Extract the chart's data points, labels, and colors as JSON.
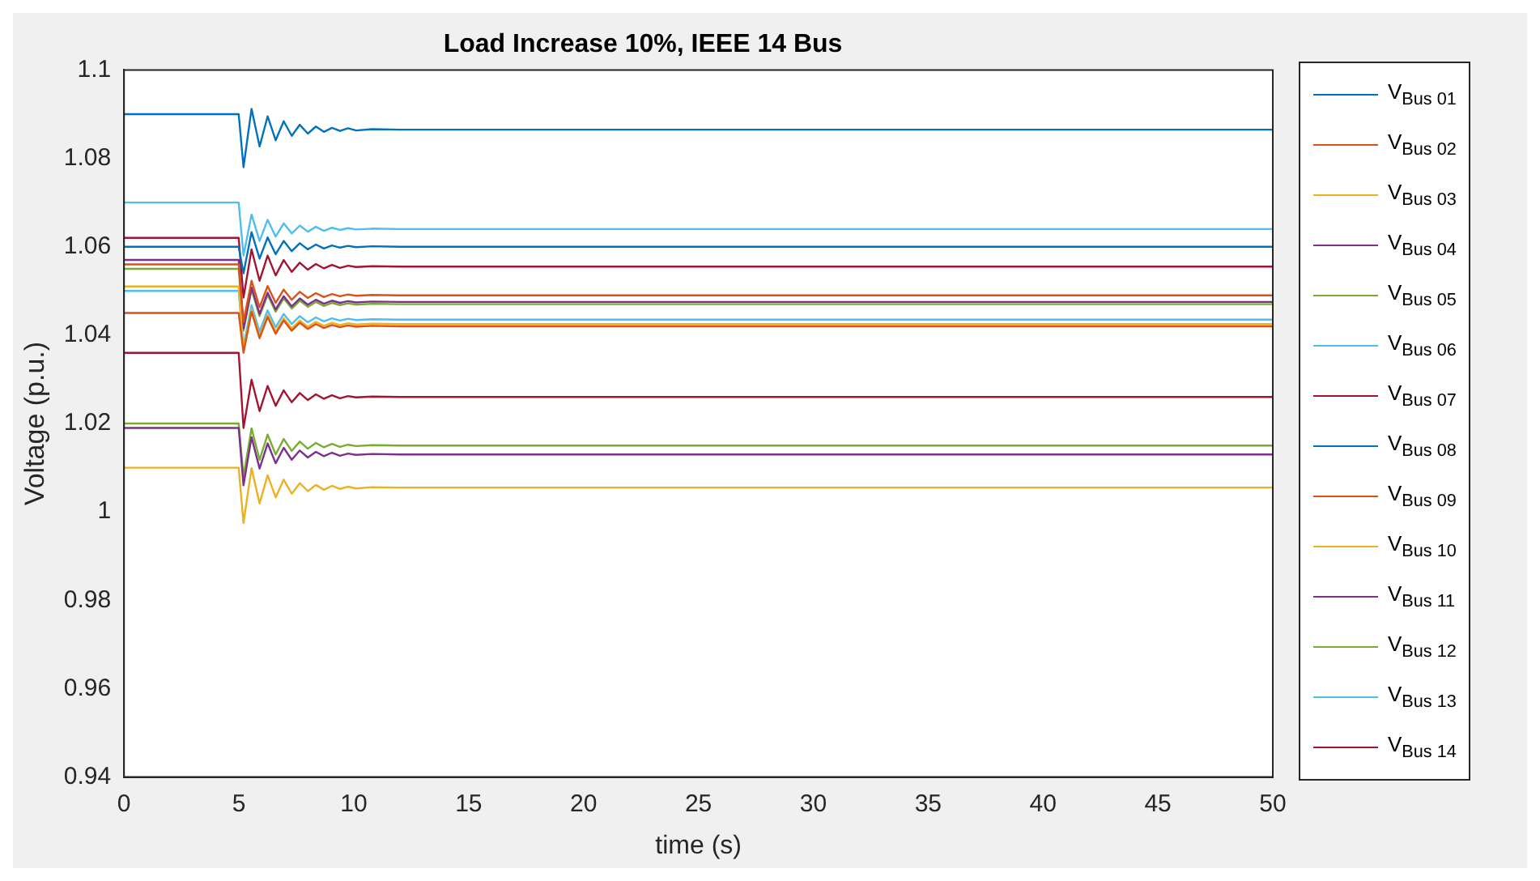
{
  "chart_data": {
    "type": "line",
    "title": "Load Increase 10%, IEEE 14 Bus",
    "xlabel": "time (s)",
    "ylabel": "Voltage (p.u.)",
    "xlim": [
      0,
      50
    ],
    "xticks": [
      0,
      5,
      10,
      15,
      20,
      25,
      30,
      35,
      40,
      45,
      50
    ],
    "ylim": [
      0.94,
      1.1
    ],
    "yticks": [
      0.94,
      0.96,
      0.98,
      1,
      1.02,
      1.04,
      1.06,
      1.08,
      1.1
    ],
    "legend": "right",
    "x": [
      0,
      4.99,
      5.2,
      5.55,
      5.9,
      6.25,
      6.6,
      6.95,
      7.3,
      7.65,
      8,
      8.35,
      8.7,
      9.05,
      9.4,
      9.75,
      10.1,
      10.8,
      12,
      50
    ],
    "series": [
      {
        "name": "V$_{Bus 01}$",
        "color": "#0072bd",
        "values": [
          1.06,
          1.06,
          1.054,
          1.0633,
          1.0573,
          1.0621,
          1.0583,
          1.0613,
          1.059,
          1.0608,
          1.0594,
          1.0605,
          1.0596,
          1.0603,
          1.0598,
          1.0602,
          1.0599,
          1.0601,
          1.06,
          1.06
        ]
      },
      {
        "name": "V$_{Bus 02}$",
        "color": "#d95319",
        "values": [
          1.045,
          1.045,
          1.036,
          1.0453,
          1.0393,
          1.0441,
          1.0403,
          1.0433,
          1.041,
          1.0428,
          1.0414,
          1.0425,
          1.0416,
          1.0423,
          1.0418,
          1.0422,
          1.0419,
          1.0421,
          1.042,
          1.042
        ]
      },
      {
        "name": "V$_{Bus 03}$",
        "color": "#edb120",
        "values": [
          1.01,
          1.01,
          0.9975,
          1.0099,
          1.0019,
          1.0083,
          1.0033,
          1.0073,
          1.0041,
          1.0065,
          1.0047,
          1.0061,
          1.005,
          1.0059,
          1.0052,
          1.0057,
          1.0053,
          1.0056,
          1.0055,
          1.0055
        ]
      },
      {
        "name": "V$_{Bus 04}$",
        "color": "#7e2f8e",
        "values": [
          1.019,
          1.019,
          1.006,
          1.0169,
          1.0098,
          1.0155,
          1.011,
          1.0145,
          1.0118,
          1.0139,
          1.0123,
          1.0136,
          1.0126,
          1.0134,
          1.0127,
          1.0132,
          1.0129,
          1.0131,
          1.013,
          1.013
        ]
      },
      {
        "name": "V$_{Bus 05}$",
        "color": "#77ac30",
        "values": [
          1.02,
          1.02,
          1.008,
          1.0189,
          1.0118,
          1.0175,
          1.013,
          1.0165,
          1.0138,
          1.0159,
          1.0143,
          1.0156,
          1.0146,
          1.0154,
          1.0147,
          1.0152,
          1.0149,
          1.0151,
          1.015,
          1.015
        ]
      },
      {
        "name": "V$_{Bus 06}$",
        "color": "#4dbeee",
        "values": [
          1.07,
          1.07,
          1.058,
          1.0673,
          1.0613,
          1.0661,
          1.0623,
          1.0653,
          1.063,
          1.0648,
          1.0634,
          1.0645,
          1.0636,
          1.0643,
          1.0638,
          1.0642,
          1.0639,
          1.0641,
          1.064,
          1.064
        ]
      },
      {
        "name": "V$_{Bus 07}$",
        "color": "#a2142f",
        "values": [
          1.062,
          1.062,
          1.0485,
          1.0594,
          1.0523,
          1.058,
          1.0535,
          1.057,
          1.0543,
          1.0564,
          1.0548,
          1.0561,
          1.0551,
          1.0559,
          1.0552,
          1.0557,
          1.0554,
          1.0556,
          1.0555,
          1.0555
        ]
      },
      {
        "name": "V$_{Bus 08}$",
        "color": "#0072bd",
        "values": [
          1.09,
          1.09,
          1.078,
          1.0912,
          1.0827,
          1.0895,
          1.0841,
          1.0884,
          1.0851,
          1.0876,
          1.0856,
          1.0872,
          1.086,
          1.0869,
          1.0862,
          1.0868,
          1.0863,
          1.0866,
          1.0865,
          1.0865
        ]
      },
      {
        "name": "V$_{Bus 09}$",
        "color": "#d95319",
        "values": [
          1.056,
          1.056,
          1.043,
          1.0523,
          1.0463,
          1.0511,
          1.0473,
          1.0503,
          1.048,
          1.0498,
          1.0484,
          1.0495,
          1.0486,
          1.0493,
          1.0488,
          1.0492,
          1.0489,
          1.0491,
          1.049,
          1.049
        ]
      },
      {
        "name": "V$_{Bus 10}$",
        "color": "#edb120",
        "values": [
          1.051,
          1.051,
          1.0365,
          1.0458,
          1.0398,
          1.0446,
          1.0408,
          1.0438,
          1.0415,
          1.0433,
          1.0419,
          1.043,
          1.0421,
          1.0428,
          1.0423,
          1.0427,
          1.0424,
          1.0426,
          1.0425,
          1.0425
        ]
      },
      {
        "name": "V$_{Bus 11}$",
        "color": "#7e2f8e",
        "values": [
          1.057,
          1.057,
          1.0415,
          1.0508,
          1.0448,
          1.0496,
          1.0458,
          1.0488,
          1.0465,
          1.0483,
          1.0469,
          1.048,
          1.0471,
          1.0478,
          1.0473,
          1.0477,
          1.0474,
          1.0476,
          1.0475,
          1.0475
        ]
      },
      {
        "name": "V$_{Bus 12}$",
        "color": "#77ac30",
        "values": [
          1.055,
          1.055,
          1.041,
          1.0503,
          1.0443,
          1.0491,
          1.0453,
          1.0483,
          1.046,
          1.0478,
          1.0464,
          1.0475,
          1.0466,
          1.0473,
          1.0468,
          1.0472,
          1.0469,
          1.0471,
          1.047,
          1.047
        ]
      },
      {
        "name": "V$_{Bus 13}$",
        "color": "#4dbeee",
        "values": [
          1.05,
          1.05,
          1.0375,
          1.0468,
          1.0408,
          1.0456,
          1.0418,
          1.0448,
          1.0425,
          1.0443,
          1.0429,
          1.044,
          1.0431,
          1.0438,
          1.0433,
          1.0437,
          1.0434,
          1.0436,
          1.0435,
          1.0435
        ]
      },
      {
        "name": "V$_{Bus 14}$",
        "color": "#a2142f",
        "values": [
          1.036,
          1.036,
          1.019,
          1.0299,
          1.0228,
          1.0285,
          1.024,
          1.0275,
          1.0248,
          1.0269,
          1.0253,
          1.0266,
          1.0256,
          1.0264,
          1.0257,
          1.0262,
          1.0259,
          1.0261,
          1.026,
          1.026
        ]
      }
    ]
  }
}
